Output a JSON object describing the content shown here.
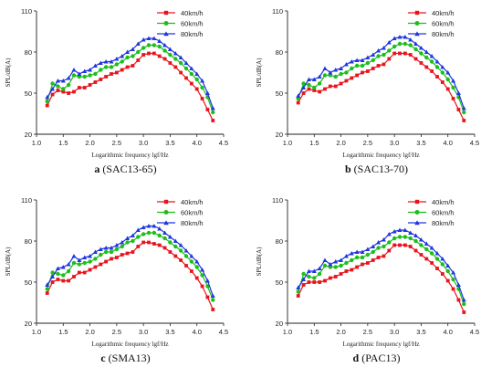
{
  "chart_data": [
    {
      "type": "line",
      "panel_label": "a",
      "subtitle": "(SAC13-65)",
      "xlabel": "Logarithmic frequency lgf/Hz",
      "ylabel": "SPL/dB(A)",
      "xlim": [
        1.0,
        4.5
      ],
      "ylim": [
        20,
        110
      ],
      "xticks": [
        "1.0",
        "1.5",
        "2.0",
        "2.5",
        "3.0",
        "3.5",
        "4.0",
        "4.5"
      ],
      "yticks": [
        "20",
        "50",
        "80",
        "110"
      ],
      "legend": "top-right",
      "x": [
        1.2,
        1.3,
        1.4,
        1.5,
        1.6,
        1.7,
        1.8,
        1.9,
        2.0,
        2.1,
        2.2,
        2.3,
        2.4,
        2.5,
        2.6,
        2.7,
        2.8,
        2.9,
        3.0,
        3.1,
        3.2,
        3.3,
        3.4,
        3.5,
        3.6,
        3.7,
        3.8,
        3.9,
        4.0,
        4.1,
        4.2,
        4.3
      ],
      "series": [
        {
          "name": "40km/h",
          "color": "#e8141c",
          "marker": "square",
          "values": [
            41,
            49,
            52,
            51,
            50,
            51,
            54,
            54,
            56,
            58,
            60,
            62,
            64,
            65,
            67,
            69,
            70,
            74,
            78,
            79,
            79,
            77,
            75,
            72,
            69,
            65,
            61,
            57,
            53,
            46,
            38,
            30
          ]
        },
        {
          "name": "60km/h",
          "color": "#1bbf1b",
          "marker": "circle",
          "values": [
            44,
            57,
            55,
            53,
            56,
            63,
            62,
            62,
            63,
            64,
            67,
            69,
            69,
            71,
            73,
            76,
            77,
            80,
            83,
            85,
            85,
            84,
            81,
            78,
            75,
            72,
            68,
            64,
            60,
            54,
            47,
            36
          ]
        },
        {
          "name": "80km/h",
          "color": "#1f36e0",
          "marker": "triangle",
          "values": [
            47,
            53,
            59,
            59,
            61,
            67,
            64,
            66,
            67,
            70,
            72,
            73,
            73,
            75,
            77,
            80,
            82,
            86,
            89,
            90,
            90,
            88,
            85,
            82,
            79,
            76,
            72,
            68,
            64,
            59,
            50,
            39
          ]
        }
      ]
    },
    {
      "type": "line",
      "panel_label": "b",
      "subtitle": "(SAC13-70)",
      "xlabel": "Logarithmic frequency lgf/Hz",
      "ylabel": "SPL/dB(A)",
      "xlim": [
        1.0,
        4.5
      ],
      "ylim": [
        20,
        110
      ],
      "xticks": [
        "1.0",
        "1.5",
        "2.0",
        "2.5",
        "3.0",
        "3.5",
        "4.0",
        "4.5"
      ],
      "yticks": [
        "20",
        "50",
        "80",
        "110"
      ],
      "legend": "top-right",
      "x": [
        1.2,
        1.3,
        1.4,
        1.5,
        1.6,
        1.7,
        1.8,
        1.9,
        2.0,
        2.1,
        2.2,
        2.3,
        2.4,
        2.5,
        2.6,
        2.7,
        2.8,
        2.9,
        3.0,
        3.1,
        3.2,
        3.3,
        3.4,
        3.5,
        3.6,
        3.7,
        3.8,
        3.9,
        4.0,
        4.1,
        4.2,
        4.3
      ],
      "series": [
        {
          "name": "40km/h",
          "color": "#e8141c",
          "marker": "square",
          "values": [
            43,
            50,
            53,
            52,
            51,
            53,
            55,
            55,
            57,
            59,
            61,
            63,
            65,
            66,
            68,
            70,
            71,
            75,
            79,
            79,
            79,
            78,
            75,
            72,
            69,
            66,
            62,
            58,
            53,
            46,
            38,
            30
          ]
        },
        {
          "name": "60km/h",
          "color": "#1bbf1b",
          "marker": "circle",
          "values": [
            46,
            57,
            56,
            54,
            57,
            63,
            63,
            62,
            64,
            65,
            68,
            70,
            70,
            72,
            74,
            77,
            78,
            81,
            84,
            86,
            86,
            85,
            82,
            79,
            76,
            73,
            69,
            65,
            60,
            54,
            47,
            36
          ]
        },
        {
          "name": "80km/h",
          "color": "#1f36e0",
          "marker": "triangle",
          "values": [
            48,
            54,
            60,
            60,
            62,
            68,
            65,
            67,
            68,
            71,
            73,
            74,
            74,
            76,
            78,
            81,
            83,
            87,
            90,
            91,
            91,
            89,
            86,
            83,
            80,
            77,
            73,
            69,
            65,
            59,
            50,
            39
          ]
        }
      ]
    },
    {
      "type": "line",
      "panel_label": "c",
      "subtitle": "(SMA13)",
      "xlabel": "Logarithmic frequency lgf/Hz",
      "ylabel": "SPL/dB(A)",
      "xlim": [
        1.0,
        4.5
      ],
      "ylim": [
        20,
        110
      ],
      "xticks": [
        "1.0",
        "1.5",
        "2.0",
        "2.5",
        "3.0",
        "3.5",
        "4.0",
        "4.5"
      ],
      "yticks": [
        "20",
        "50",
        "80",
        "110"
      ],
      "legend": "top-right",
      "x": [
        1.2,
        1.3,
        1.4,
        1.5,
        1.6,
        1.7,
        1.8,
        1.9,
        2.0,
        2.1,
        2.2,
        2.3,
        2.4,
        2.5,
        2.6,
        2.7,
        2.8,
        2.9,
        3.0,
        3.1,
        3.2,
        3.3,
        3.4,
        3.5,
        3.6,
        3.7,
        3.8,
        3.9,
        4.0,
        4.1,
        4.2,
        4.3
      ],
      "series": [
        {
          "name": "40km/h",
          "color": "#e8141c",
          "marker": "square",
          "values": [
            42,
            50,
            52,
            51,
            51,
            54,
            57,
            57,
            59,
            61,
            63,
            65,
            67,
            68,
            70,
            71,
            72,
            76,
            79,
            79,
            78,
            77,
            75,
            72,
            69,
            66,
            62,
            58,
            53,
            47,
            39,
            30
          ]
        },
        {
          "name": "60km/h",
          "color": "#1bbf1b",
          "marker": "circle",
          "values": [
            45,
            57,
            56,
            55,
            58,
            64,
            63,
            64,
            65,
            67,
            70,
            72,
            72,
            74,
            76,
            79,
            80,
            83,
            85,
            86,
            86,
            84,
            82,
            79,
            76,
            73,
            69,
            65,
            61,
            55,
            47,
            37
          ]
        },
        {
          "name": "80km/h",
          "color": "#1f36e0",
          "marker": "triangle",
          "values": [
            48,
            54,
            60,
            61,
            63,
            69,
            66,
            68,
            69,
            72,
            74,
            75,
            75,
            77,
            79,
            82,
            84,
            88,
            90,
            91,
            91,
            89,
            86,
            83,
            80,
            77,
            73,
            69,
            65,
            59,
            51,
            40
          ]
        }
      ]
    },
    {
      "type": "line",
      "panel_label": "d",
      "subtitle": "(PAC13)",
      "xlabel": "Logarithmic frequency lgf/Hz",
      "ylabel": "SPL/dB(A)",
      "xlim": [
        1.0,
        4.5
      ],
      "ylim": [
        20,
        110
      ],
      "xticks": [
        "1.0",
        "1.5",
        "2.0",
        "2.5",
        "3.0",
        "3.5",
        "4.0",
        "4.5"
      ],
      "yticks": [
        "20",
        "50",
        "80",
        "110"
      ],
      "legend": "top-right",
      "x": [
        1.2,
        1.3,
        1.4,
        1.5,
        1.6,
        1.7,
        1.8,
        1.9,
        2.0,
        2.1,
        2.2,
        2.3,
        2.4,
        2.5,
        2.6,
        2.7,
        2.8,
        2.9,
        3.0,
        3.1,
        3.2,
        3.3,
        3.4,
        3.5,
        3.6,
        3.7,
        3.8,
        3.9,
        4.0,
        4.1,
        4.2,
        4.3
      ],
      "series": [
        {
          "name": "40km/h",
          "color": "#e8141c",
          "marker": "square",
          "values": [
            40,
            48,
            50,
            50,
            50,
            51,
            53,
            54,
            56,
            58,
            59,
            61,
            63,
            64,
            66,
            68,
            69,
            73,
            77,
            77,
            77,
            76,
            73,
            70,
            67,
            64,
            60,
            56,
            51,
            45,
            37,
            28
          ]
        },
        {
          "name": "60km/h",
          "color": "#1bbf1b",
          "marker": "circle",
          "values": [
            43,
            56,
            54,
            53,
            56,
            62,
            61,
            61,
            62,
            64,
            66,
            68,
            68,
            70,
            72,
            75,
            76,
            79,
            82,
            83,
            83,
            82,
            80,
            77,
            74,
            71,
            67,
            63,
            58,
            52,
            45,
            34
          ]
        },
        {
          "name": "80km/h",
          "color": "#1f36e0",
          "marker": "triangle",
          "values": [
            46,
            52,
            58,
            58,
            60,
            66,
            63,
            65,
            66,
            69,
            71,
            72,
            72,
            74,
            76,
            79,
            81,
            85,
            87,
            88,
            88,
            86,
            84,
            81,
            78,
            75,
            71,
            67,
            62,
            57,
            48,
            37
          ]
        }
      ]
    }
  ]
}
